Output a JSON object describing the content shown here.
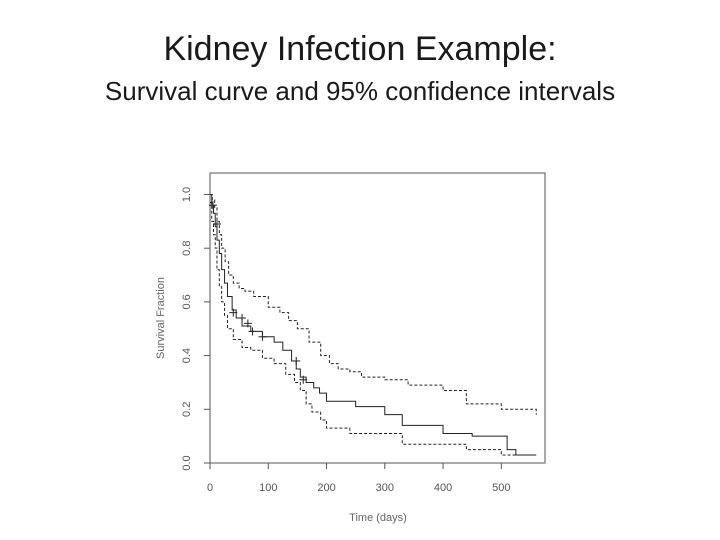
{
  "slide": {
    "title": "Kidney Infection Example:",
    "subtitle": "Survival curve and 95% confidence intervals"
  },
  "chart_data": {
    "type": "line",
    "subtype": "step (Kaplan-Meier)",
    "xlabel": "Time (days)",
    "ylabel": "Survival Fraction",
    "xlim": [
      0,
      575
    ],
    "ylim": [
      0,
      1.08
    ],
    "xticks": [
      0,
      100,
      200,
      300,
      400,
      500
    ],
    "yticks": [
      0.0,
      0.2,
      0.4,
      0.6,
      0.8,
      1.0
    ],
    "ytick_labels": [
      "0.0",
      "0.2",
      "0.4",
      "0.6",
      "0.8",
      "1.0"
    ],
    "grid": false,
    "legend": "none",
    "series": [
      {
        "style": "solid",
        "x": [
          0,
          3,
          6,
          9,
          12,
          16,
          20,
          25,
          30,
          38,
          45,
          55,
          70,
          90,
          110,
          125,
          140,
          148,
          155,
          165,
          178,
          188,
          200,
          250,
          300,
          330,
          350,
          400,
          450,
          510,
          525,
          560
        ],
        "y": [
          1.0,
          0.96,
          0.93,
          0.88,
          0.83,
          0.78,
          0.72,
          0.67,
          0.62,
          0.57,
          0.54,
          0.51,
          0.49,
          0.47,
          0.45,
          0.42,
          0.38,
          0.35,
          0.32,
          0.3,
          0.28,
          0.26,
          0.23,
          0.21,
          0.18,
          0.14,
          0.14,
          0.11,
          0.1,
          0.05,
          0.03,
          0.03
        ]
      },
      {
        "style": "dashed",
        "x": [
          0,
          4,
          8,
          12,
          16,
          20,
          26,
          32,
          40,
          50,
          60,
          75,
          100,
          120,
          135,
          150,
          170,
          190,
          205,
          220,
          240,
          260,
          300,
          340,
          400,
          440,
          500,
          560
        ],
        "y": [
          1.0,
          0.98,
          0.95,
          0.9,
          0.85,
          0.8,
          0.75,
          0.7,
          0.67,
          0.65,
          0.64,
          0.62,
          0.58,
          0.56,
          0.53,
          0.5,
          0.45,
          0.4,
          0.37,
          0.35,
          0.34,
          0.32,
          0.31,
          0.29,
          0.27,
          0.22,
          0.2,
          0.18
        ]
      },
      {
        "style": "dashed",
        "x": [
          0,
          3,
          6,
          9,
          12,
          16,
          20,
          25,
          30,
          40,
          55,
          70,
          90,
          110,
          130,
          145,
          155,
          165,
          175,
          190,
          200,
          240,
          330,
          360,
          440,
          500,
          560
        ],
        "y": [
          0.97,
          0.9,
          0.85,
          0.8,
          0.72,
          0.66,
          0.6,
          0.55,
          0.5,
          0.46,
          0.43,
          0.42,
          0.39,
          0.37,
          0.33,
          0.3,
          0.27,
          0.22,
          0.19,
          0.16,
          0.13,
          0.11,
          0.07,
          0.07,
          0.05,
          0.03,
          0.03
        ]
      }
    ],
    "censor_marks": [
      {
        "x": 5,
        "y": 0.96
      },
      {
        "x": 12,
        "y": 0.89
      },
      {
        "x": 40,
        "y": 0.56
      },
      {
        "x": 55,
        "y": 0.54
      },
      {
        "x": 65,
        "y": 0.52
      },
      {
        "x": 73,
        "y": 0.49
      },
      {
        "x": 90,
        "y": 0.47
      },
      {
        "x": 148,
        "y": 0.38
      },
      {
        "x": 160,
        "y": 0.31
      }
    ]
  }
}
